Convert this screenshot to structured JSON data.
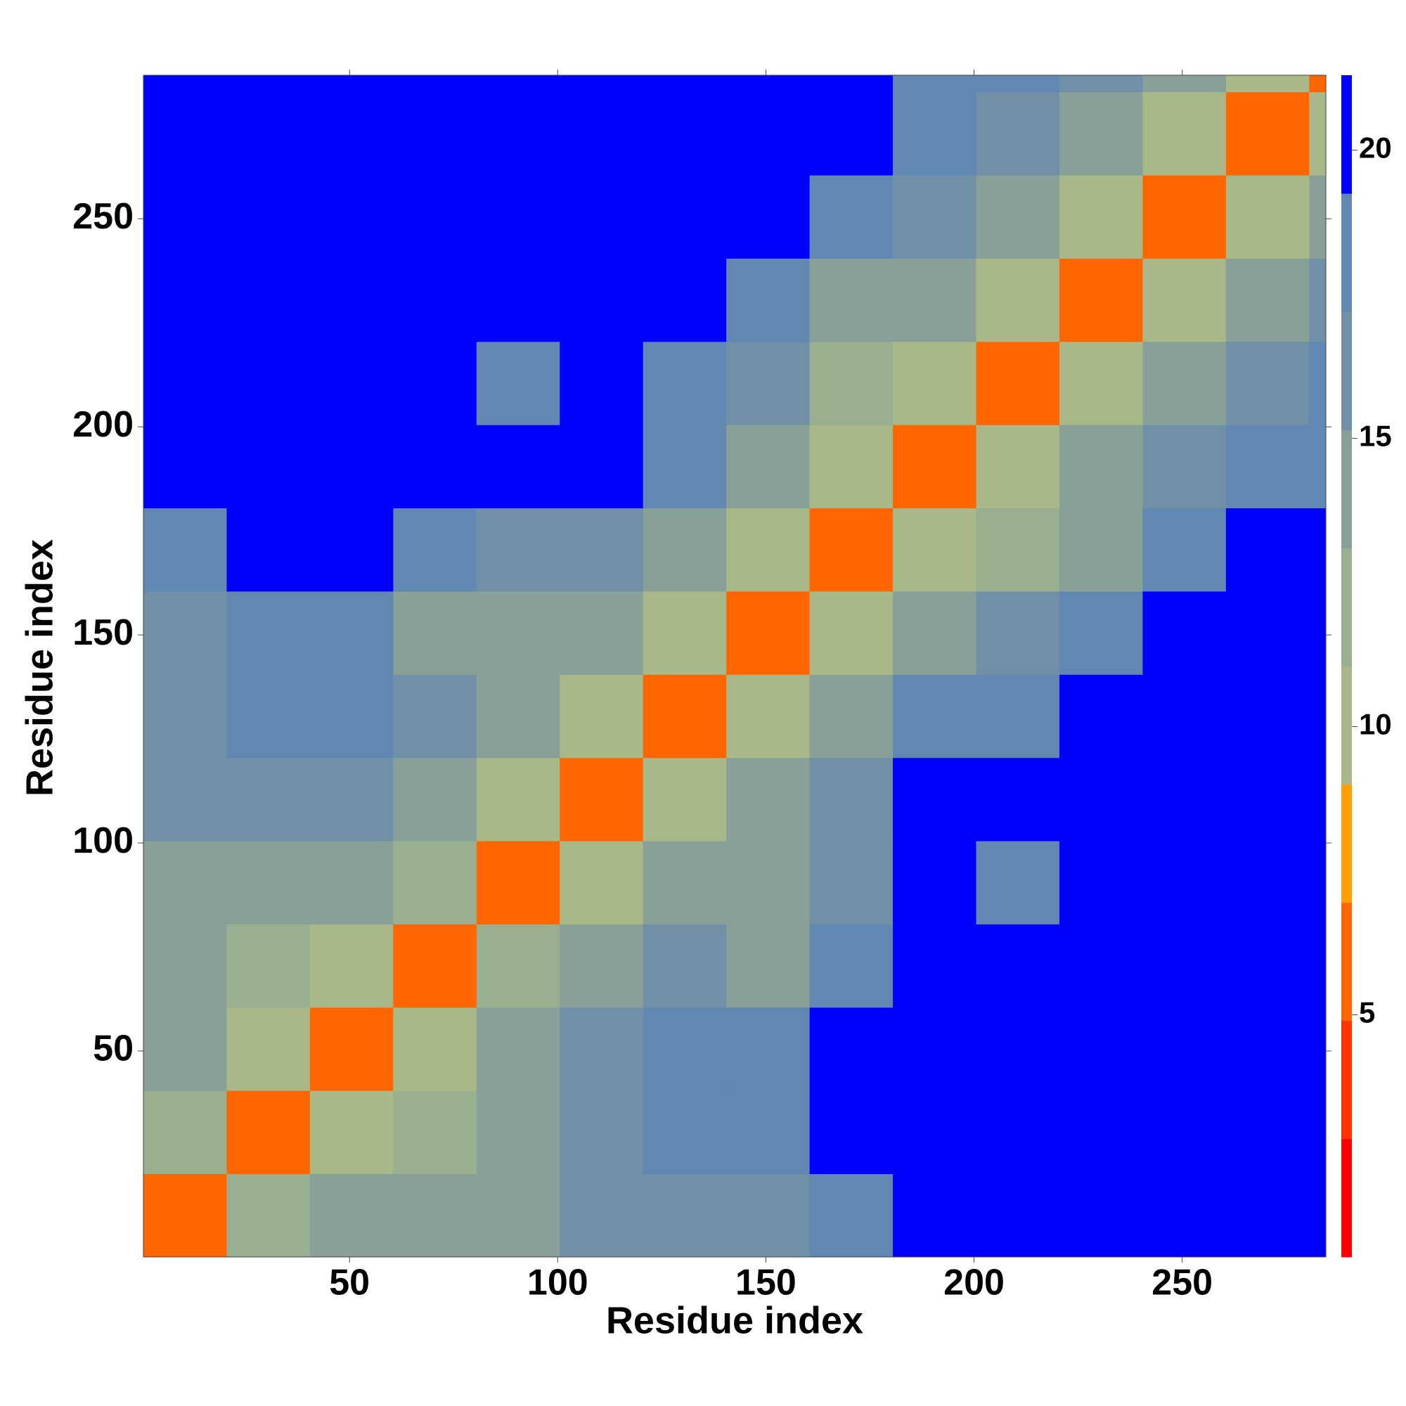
{
  "chart_data": {
    "type": "heatmap",
    "xlabel": "Residue index",
    "ylabel": "Residue index",
    "x_bins": [
      0.5,
      20.5,
      40.5,
      60.5,
      80.5,
      100.5,
      120.5,
      140.5,
      160.5,
      180.5,
      200.5,
      220.5,
      240.5,
      260.5,
      280.5,
      284.5
    ],
    "y_bins": [
      0.5,
      20.5,
      40.5,
      60.5,
      80.5,
      100.5,
      120.5,
      140.5,
      160.5,
      180.5,
      200.5,
      220.5,
      240.5,
      260.5,
      280.5,
      284.5
    ],
    "z": [
      [
        6,
        12,
        14,
        14,
        15,
        17,
        17,
        16,
        18,
        21,
        20,
        20,
        21,
        20,
        21
      ],
      [
        12,
        6,
        11,
        13,
        15,
        17,
        18,
        19,
        21,
        21,
        21,
        21,
        21,
        21,
        21
      ],
      [
        14,
        11,
        6,
        11,
        14,
        16,
        18,
        19,
        21,
        21,
        21,
        21,
        21,
        21,
        21
      ],
      [
        14,
        13,
        11,
        6,
        12,
        15,
        16,
        15,
        18,
        21,
        20,
        21,
        21,
        21,
        21
      ],
      [
        15,
        15,
        14,
        12,
        6,
        11,
        15,
        14,
        16,
        21,
        19,
        20,
        21,
        21,
        21
      ],
      [
        17,
        17,
        16,
        15,
        11,
        6,
        11,
        15,
        17,
        21,
        20,
        21,
        21,
        21,
        21
      ],
      [
        17,
        18,
        18,
        16,
        15,
        11,
        6,
        11,
        14,
        18,
        19,
        21,
        21,
        21,
        21
      ],
      [
        16,
        19,
        19,
        15,
        14,
        15,
        11,
        6,
        11,
        14,
        16,
        19,
        20,
        21,
        21
      ],
      [
        18,
        21,
        21,
        18,
        16,
        17,
        14,
        11,
        6,
        11,
        13,
        15,
        18,
        20,
        21
      ],
      [
        21,
        21,
        21,
        21,
        21,
        21,
        18,
        14,
        11,
        6,
        11,
        14,
        16,
        18,
        19
      ],
      [
        20,
        21,
        21,
        20,
        19,
        20,
        19,
        16,
        13,
        11,
        6,
        11,
        14,
        16,
        18
      ],
      [
        20,
        21,
        21,
        21,
        20,
        21,
        21,
        19,
        15,
        14,
        11,
        6,
        11,
        14,
        16
      ],
      [
        21,
        21,
        21,
        21,
        21,
        21,
        21,
        20,
        18,
        16,
        14,
        11,
        6,
        11,
        15
      ],
      [
        20,
        21,
        21,
        21,
        21,
        21,
        21,
        21,
        20,
        18,
        16,
        14,
        11,
        6,
        10
      ],
      [
        21,
        21,
        21,
        21,
        21,
        21,
        21,
        21,
        21,
        19,
        18,
        16,
        15,
        10,
        5
      ]
    ],
    "xlim": [
      0.5,
      284.5
    ],
    "ylim": [
      0.5,
      284.5
    ],
    "xticks": [
      50,
      100,
      150,
      200,
      250
    ],
    "yticks": [
      50,
      100,
      150,
      200,
      250
    ],
    "clim": [
      0.8,
      21.3
    ],
    "cticks": [
      5,
      10,
      15,
      20
    ],
    "colorscale": [
      "#ff0000",
      "#ff3300",
      "#ff6600",
      "#ffa000",
      "#a8b888",
      "#98b090",
      "#88a098",
      "#7090a8",
      "#6088b0",
      "#0000ff"
    ]
  }
}
